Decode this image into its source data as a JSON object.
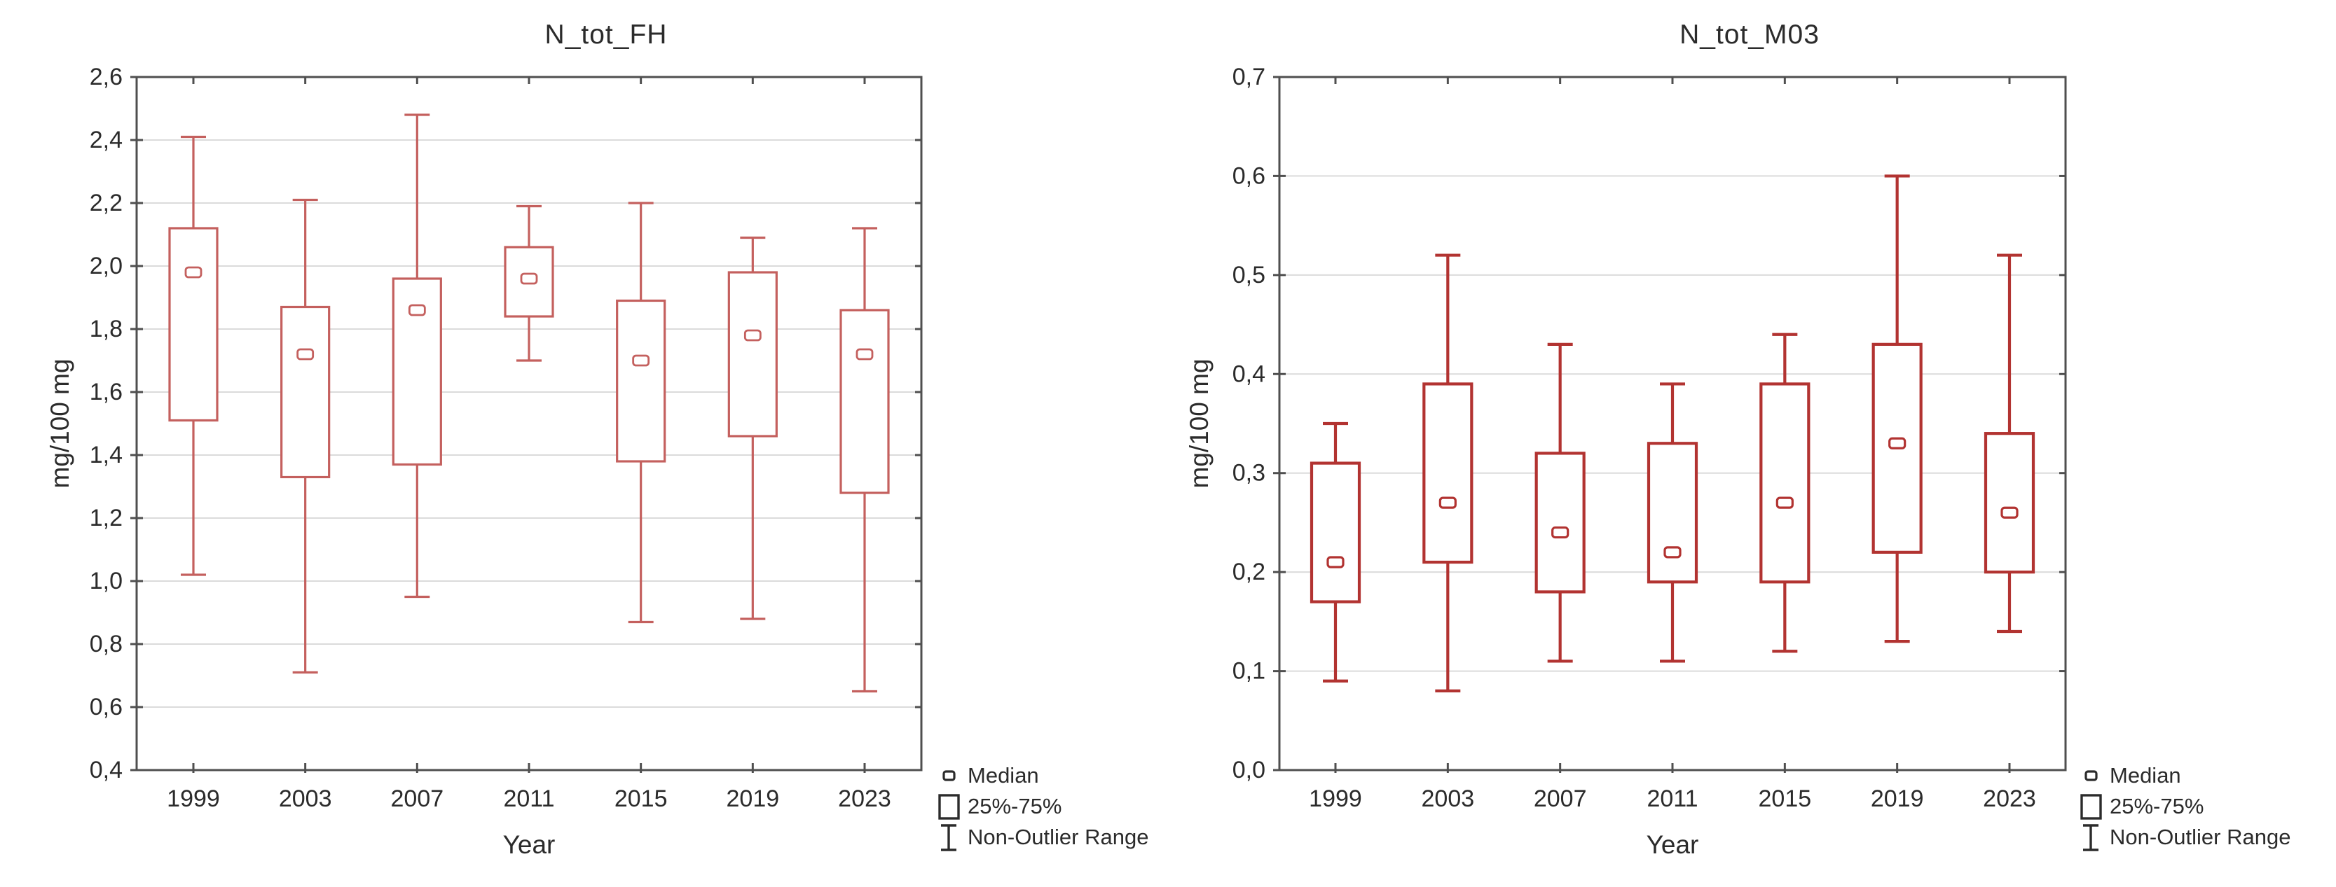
{
  "styles": {
    "background": "#ffffff",
    "frame_color": "#4f4f4f",
    "grid_color": "#dbdbdb",
    "text_color": "#2b2b2b"
  },
  "chart_data": [
    {
      "type": "box",
      "title": "N_tot_FH",
      "xlabel": "Year",
      "ylabel": "mg/100 mg",
      "ylim": [
        0.4,
        2.6
      ],
      "ytick_step": 0.2,
      "ytick_labels": [
        "0,4",
        "0,6",
        "0,8",
        "1,0",
        "1,2",
        "1,4",
        "1,6",
        "1,8",
        "2,0",
        "2,2",
        "2,4",
        "2,6"
      ],
      "grid": true,
      "legend_position": "bottom-right",
      "legend": [
        "Median",
        "25%-75%",
        "Non-Outlier Range"
      ],
      "colors": {
        "line": "#c4605e"
      },
      "categories": [
        "1999",
        "2003",
        "2007",
        "2011",
        "2015",
        "2019",
        "2023"
      ],
      "boxes": [
        {
          "year": "1999",
          "low": 1.02,
          "q1": 1.51,
          "median": 1.98,
          "q3": 2.12,
          "high": 2.41
        },
        {
          "year": "2003",
          "low": 0.71,
          "q1": 1.33,
          "median": 1.72,
          "q3": 1.87,
          "high": 2.21
        },
        {
          "year": "2007",
          "low": 0.95,
          "q1": 1.37,
          "median": 1.86,
          "q3": 1.96,
          "high": 2.48
        },
        {
          "year": "2011",
          "low": 1.7,
          "q1": 1.84,
          "median": 1.96,
          "q3": 2.06,
          "high": 2.19
        },
        {
          "year": "2015",
          "low": 0.87,
          "q1": 1.38,
          "median": 1.7,
          "q3": 1.89,
          "high": 2.2
        },
        {
          "year": "2019",
          "low": 0.88,
          "q1": 1.46,
          "median": 1.78,
          "q3": 1.98,
          "high": 2.09
        },
        {
          "year": "2023",
          "low": 0.65,
          "q1": 1.28,
          "median": 1.72,
          "q3": 1.86,
          "high": 2.12
        }
      ]
    },
    {
      "type": "box",
      "title": "N_tot_M03",
      "xlabel": "Year",
      "ylabel": "mg/100 mg",
      "ylim": [
        0.0,
        0.7
      ],
      "ytick_step": 0.1,
      "ytick_labels": [
        "0,0",
        "0,1",
        "0,2",
        "0,3",
        "0,4",
        "0,5",
        "0,6",
        "0,7"
      ],
      "grid": true,
      "legend_position": "bottom-right",
      "legend": [
        "Median",
        "25%-75%",
        "Non-Outlier Range"
      ],
      "colors": {
        "line": "#b23331"
      },
      "categories": [
        "1999",
        "2003",
        "2007",
        "2011",
        "2015",
        "2019",
        "2023"
      ],
      "boxes": [
        {
          "year": "1999",
          "low": 0.09,
          "q1": 0.17,
          "median": 0.21,
          "q3": 0.31,
          "high": 0.35
        },
        {
          "year": "2003",
          "low": 0.08,
          "q1": 0.21,
          "median": 0.27,
          "q3": 0.39,
          "high": 0.52
        },
        {
          "year": "2007",
          "low": 0.11,
          "q1": 0.18,
          "median": 0.24,
          "q3": 0.32,
          "high": 0.43
        },
        {
          "year": "2011",
          "low": 0.11,
          "q1": 0.19,
          "median": 0.22,
          "q3": 0.33,
          "high": 0.39
        },
        {
          "year": "2015",
          "low": 0.12,
          "q1": 0.19,
          "median": 0.27,
          "q3": 0.39,
          "high": 0.44
        },
        {
          "year": "2019",
          "low": 0.13,
          "q1": 0.22,
          "median": 0.33,
          "q3": 0.43,
          "high": 0.6
        },
        {
          "year": "2023",
          "low": 0.14,
          "q1": 0.2,
          "median": 0.26,
          "q3": 0.34,
          "high": 0.52
        }
      ]
    }
  ]
}
